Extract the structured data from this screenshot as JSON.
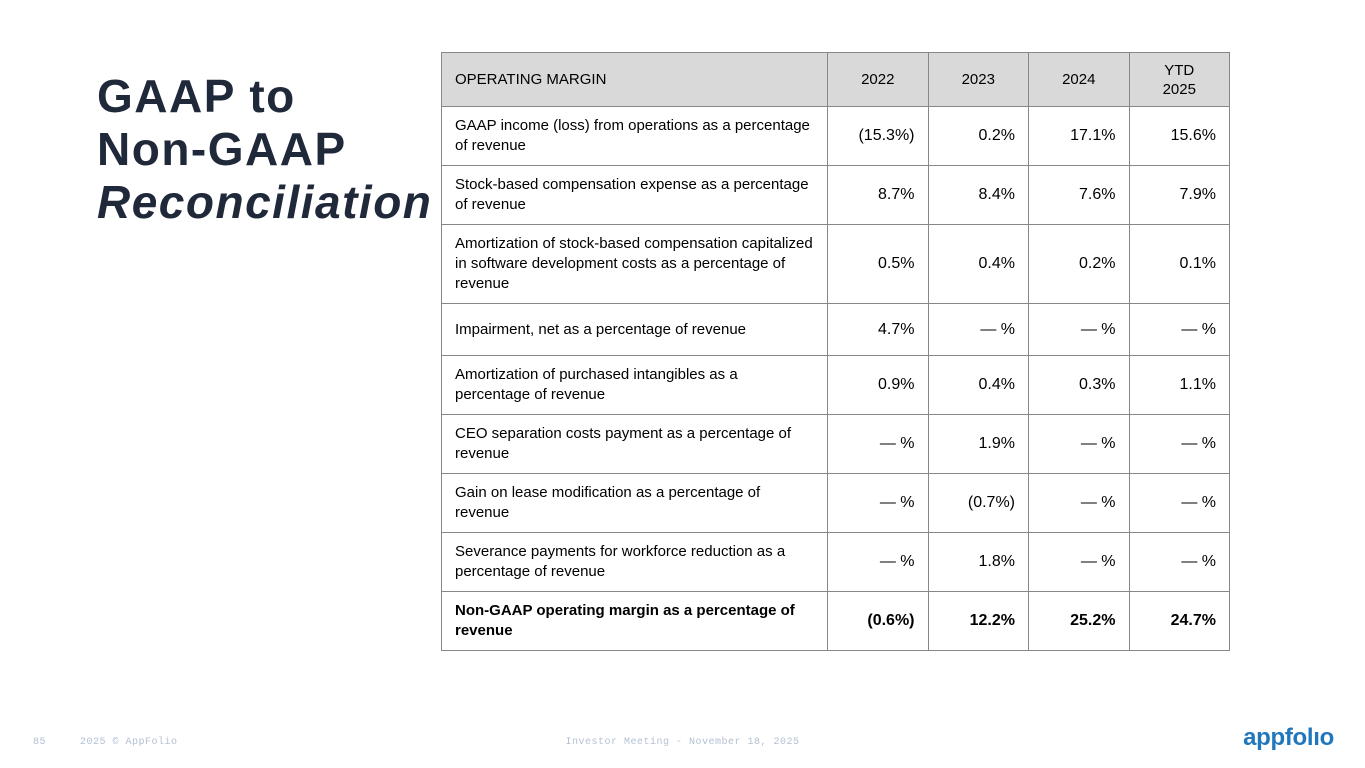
{
  "colors": {
    "title_navy": "#20293a",
    "table_border_gray": "#878787",
    "table_header_bg": "#d9d9d9",
    "footer_text": "#b5c0d3",
    "logo_blue": "#2177bd"
  },
  "title": {
    "lines": [
      "GAAP to",
      "Non-GAAP",
      "Reconciliation"
    ]
  },
  "table": {
    "header": [
      "OPERATING MARGIN",
      "2022",
      "2023",
      "2024",
      "YTD\n2025"
    ],
    "rows": [
      {
        "label": "GAAP income (loss) from operations as a percentage of revenue",
        "values": [
          "(15.3%)",
          "0.2%",
          "17.1%",
          "15.6%"
        ],
        "bold": false
      },
      {
        "label": "Stock-based compensation expense as a percentage of revenue",
        "values": [
          "8.7%",
          "8.4%",
          "7.6%",
          "7.9%"
        ],
        "bold": false
      },
      {
        "label": "Amortization of stock-based compensation capitalized in software development costs as a percentage of revenue",
        "values": [
          "0.5%",
          "0.4%",
          "0.2%",
          "0.1%"
        ],
        "bold": false
      },
      {
        "label": "Impairment, net as a percentage of revenue",
        "values": [
          "4.7%",
          "— %",
          "— %",
          "— %"
        ],
        "bold": false
      },
      {
        "label": "Amortization of purchased intangibles as a percentage of revenue",
        "values": [
          "0.9%",
          "0.4%",
          "0.3%",
          "1.1%"
        ],
        "bold": false
      },
      {
        "label": "CEO separation costs payment as a percentage of revenue",
        "values": [
          "— %",
          "1.9%",
          "— %",
          "— %"
        ],
        "bold": false
      },
      {
        "label": "Gain on lease modification as a percentage of revenue",
        "values": [
          "— %",
          "(0.7%)",
          "— %",
          "— %"
        ],
        "bold": false
      },
      {
        "label": "Severance payments for workforce reduction as a percentage of revenue",
        "values": [
          "— %",
          "1.8%",
          "— %",
          "— %"
        ],
        "bold": false
      },
      {
        "label": "Non-GAAP operating margin as a percentage of revenue",
        "values": [
          "(0.6%)",
          "12.2%",
          "25.2%",
          "24.7%"
        ],
        "bold": true
      }
    ]
  },
  "footer": {
    "page_number": "85",
    "copyright": "2025 © AppFolio",
    "center_text": "Investor Meeting - November 18, 2025",
    "logo_text": "appfolıo"
  }
}
